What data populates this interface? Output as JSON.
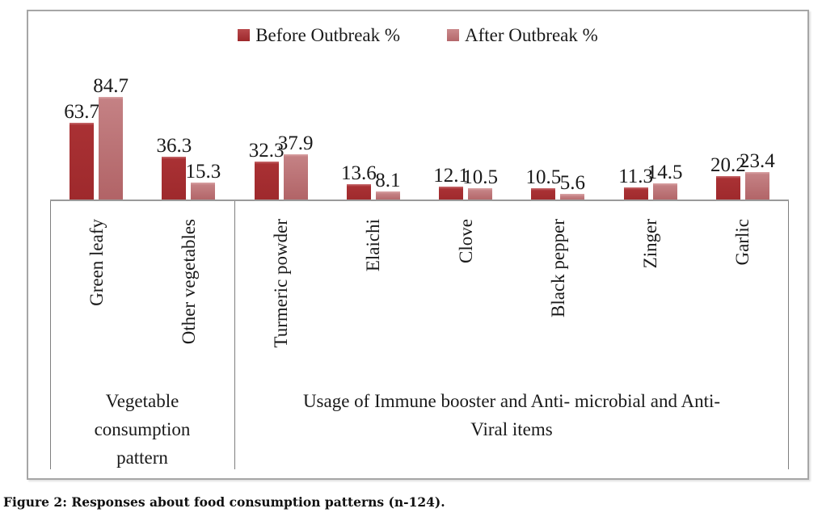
{
  "figure": {
    "caption": "Figure 2: Responses about food consumption patterns (n-124)."
  },
  "chart_data": {
    "type": "bar",
    "title": "",
    "xlabel": "",
    "ylabel": "",
    "ylim": [
      0,
      100
    ],
    "grid": false,
    "legend_position": "top",
    "data_labels": true,
    "categories": [
      "Green leafy",
      "Other vegetables",
      "Turmeric powder",
      "Elaichi",
      "Clove",
      "Black pepper",
      "Zinger",
      "Garlic"
    ],
    "series": [
      {
        "name": "Before Outbreak  %",
        "color": "#a32b2e",
        "values": [
          63.7,
          36.3,
          32.3,
          13.6,
          12.1,
          10.5,
          11.3,
          20.2
        ]
      },
      {
        "name": "After Outbreak %",
        "color": "#c17477",
        "values": [
          84.7,
          15.3,
          37.9,
          8.1,
          10.5,
          5.6,
          14.5,
          23.4
        ]
      }
    ],
    "groups": [
      {
        "label": "Vegetable consumption pattern",
        "span": 2,
        "lines": [
          "Vegetable",
          "consumption",
          "pattern"
        ]
      },
      {
        "label": "Usage of Immune booster and Anti- microbial and Anti-Viral items",
        "span": 6,
        "lines": [
          "Usage of Immune booster and Anti- microbial and Anti-",
          "Viral items"
        ]
      }
    ]
  }
}
